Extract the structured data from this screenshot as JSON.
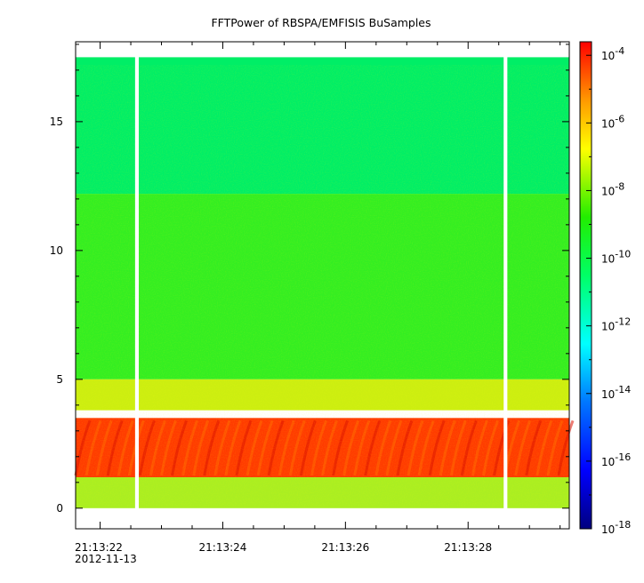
{
  "chart_data": {
    "type": "heatmap",
    "title": "FFTPower of RBSPA/EMFISIS  BuSamples",
    "xlabel": "",
    "ylabel": "",
    "x_axis": {
      "kind": "time",
      "date_label": "2012-11-13",
      "range": [
        "21:13:21.60",
        "21:13:29.65"
      ],
      "major_ticks": [
        "21:13:22",
        "21:13:24",
        "21:13:26",
        "21:13:28"
      ],
      "minor_tick_interval_s": 0.5
    },
    "y_axis": {
      "range": [
        -0.8,
        18.1
      ],
      "major_ticks": [
        0,
        5,
        10,
        15
      ],
      "minor_tick_interval": 1
    },
    "colorbar": {
      "scale": "log",
      "range_exponent": [
        -18,
        -3.6
      ],
      "tick_base": "10",
      "tick_exponents": [
        "-4",
        "-6",
        "-8",
        "-10",
        "-12",
        "-14",
        "-16",
        "-18"
      ],
      "colormap": [
        "#00007f",
        "#0000ff",
        "#00ffff",
        "#00ff00",
        "#ffff00",
        "#ff0000"
      ]
    },
    "data_extent": {
      "y_max": 17.5,
      "y_min": 0
    },
    "gaps": [
      {
        "start": "21:13:22.57",
        "end": "21:13:22.63"
      },
      {
        "start": "21:13:28.58",
        "end": "21:13:28.64"
      }
    ],
    "bands": [
      {
        "y_from": 12.2,
        "y_to": 17.5,
        "log_power": -12.3,
        "color": "#00ee66"
      },
      {
        "y_from": 5.0,
        "y_to": 12.2,
        "log_power": -10.4,
        "color": "#33ee22"
      },
      {
        "y_from": 3.8,
        "y_to": 5.0,
        "log_power": -9.2,
        "color": "#ccee11"
      },
      {
        "y_from": 1.2,
        "y_to": 3.5,
        "log_power": -5.2,
        "color": "#ff3a00"
      },
      {
        "y_from": 0,
        "y_to": 1.2,
        "log_power": -9.5,
        "color": "#aaee22"
      }
    ]
  }
}
